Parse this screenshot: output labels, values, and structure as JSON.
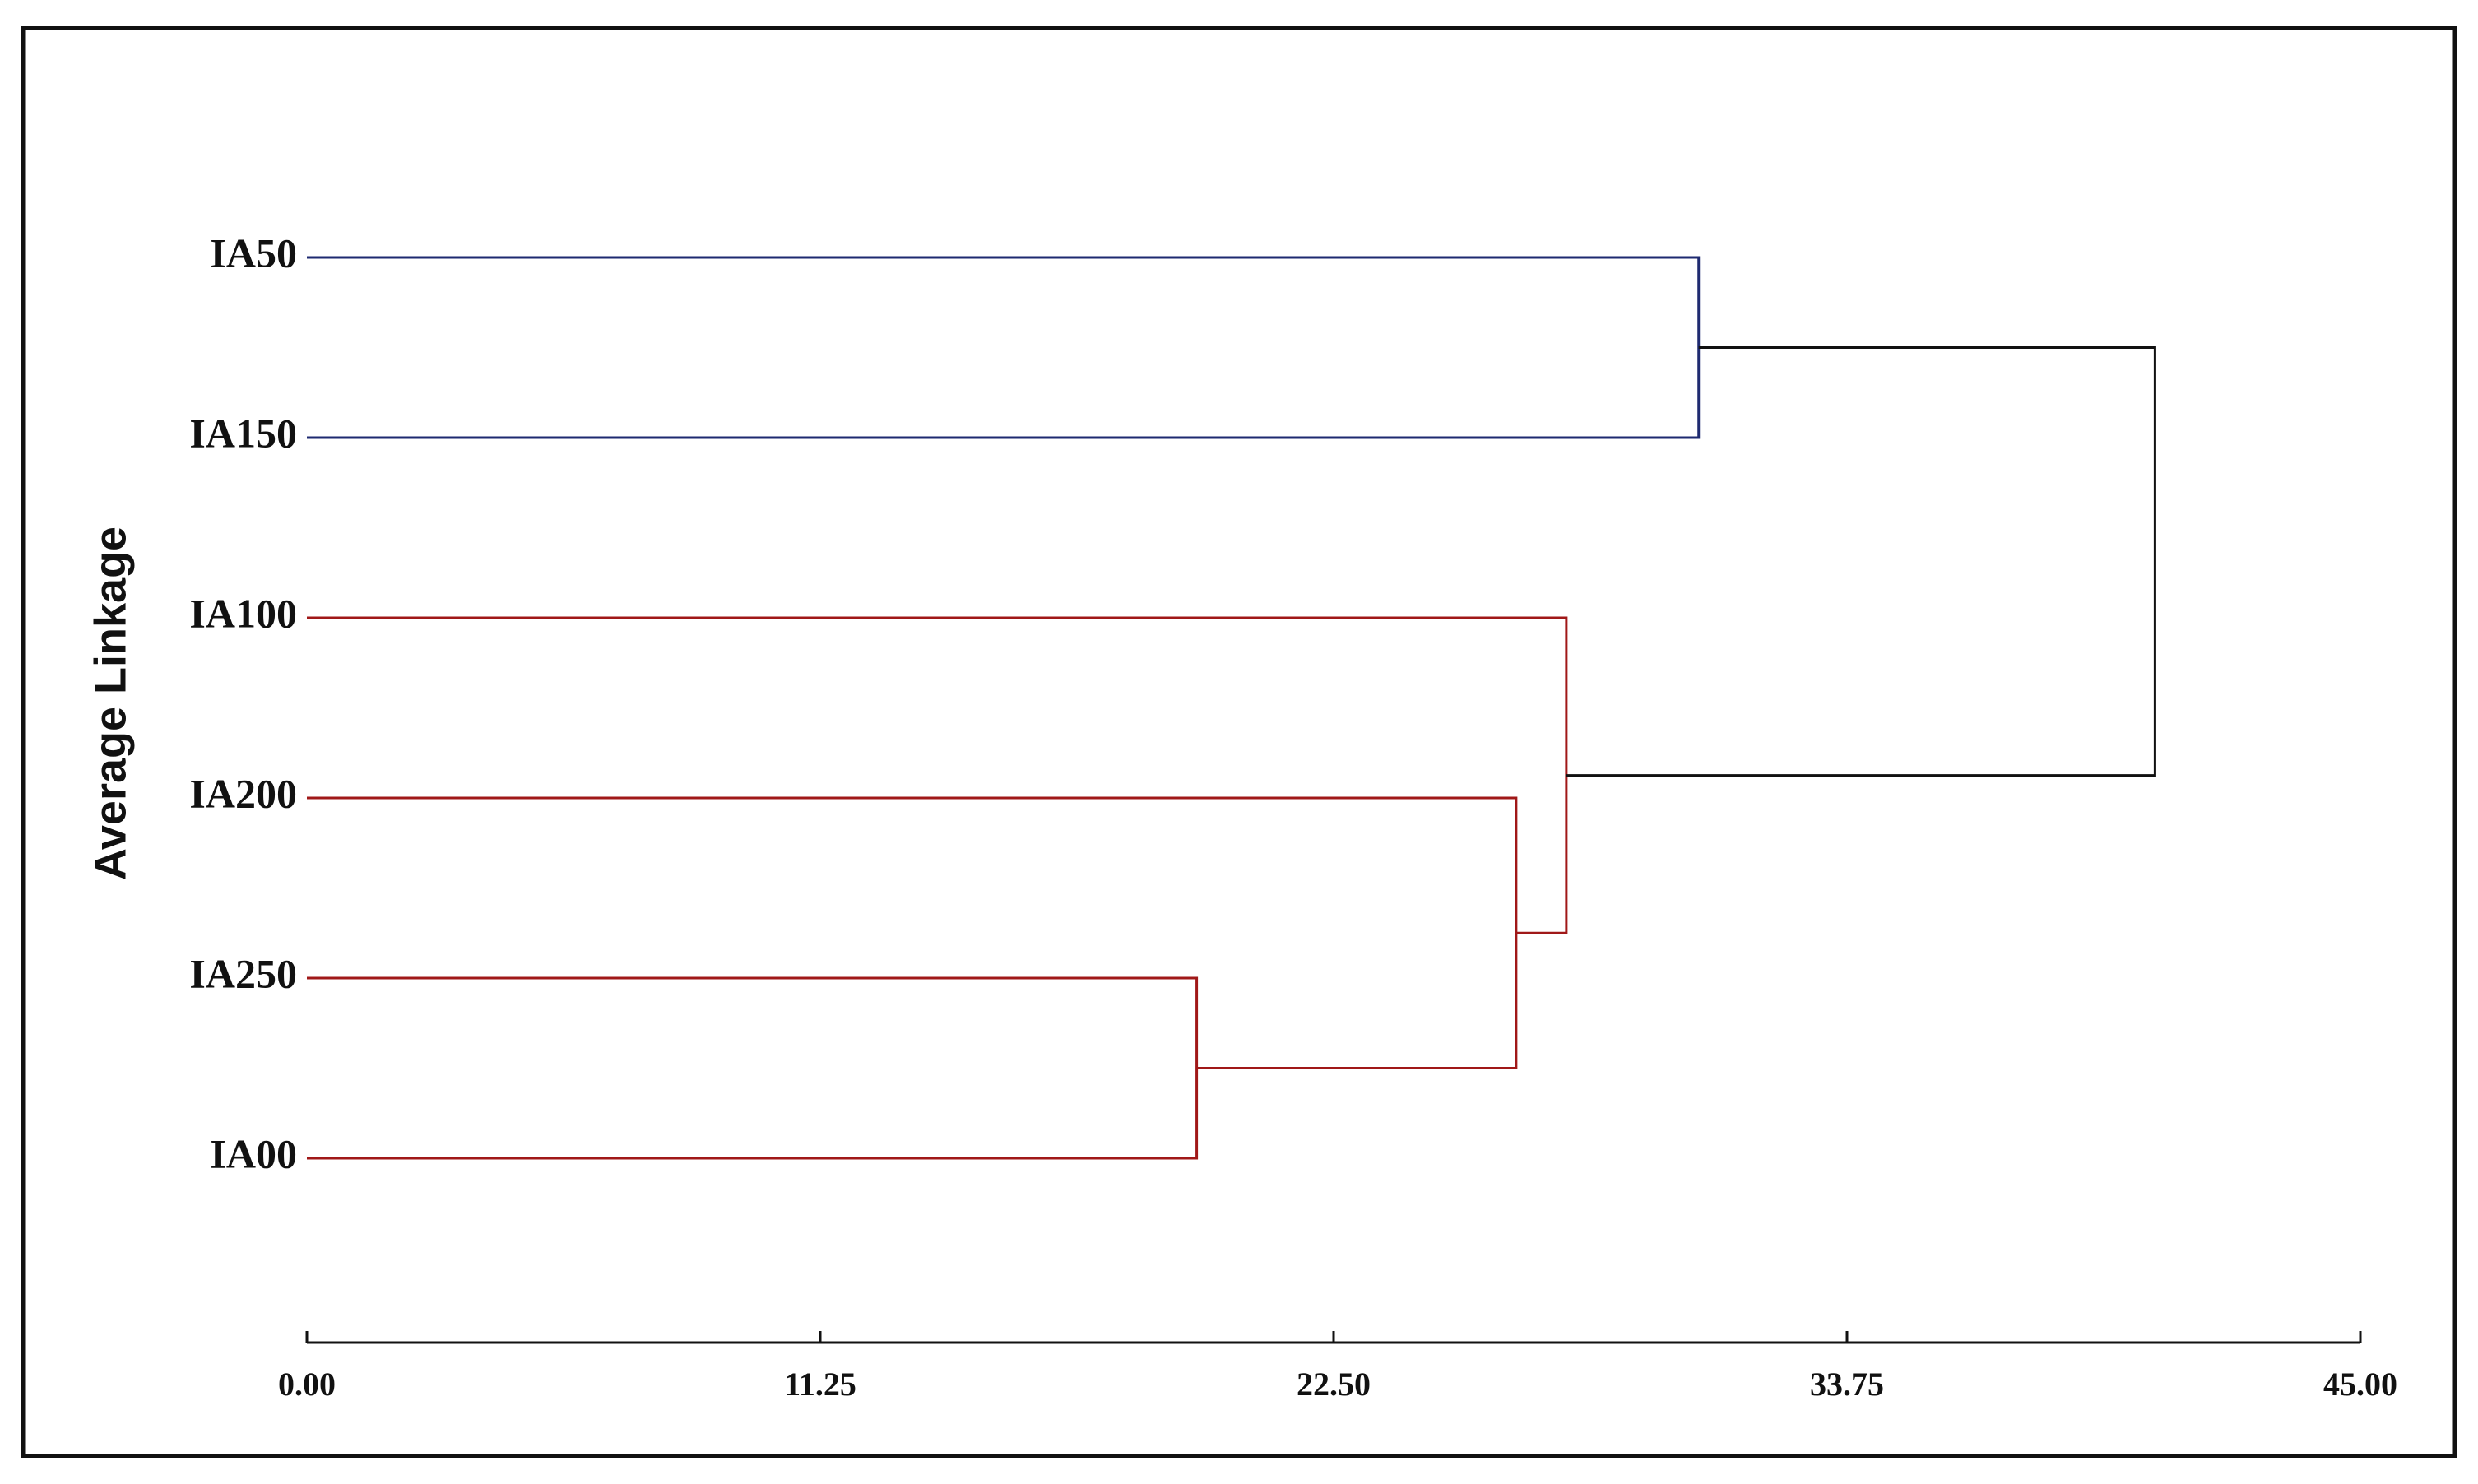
{
  "chart_data": {
    "type": "dendrogram",
    "y_label": "Average Linkage",
    "leaves": [
      "IA50",
      "IA150",
      "IA100",
      "IA200",
      "IA250",
      "IA00"
    ],
    "merges": [
      {
        "children": [
          4,
          5
        ],
        "height": 19.5,
        "color": "#a01818"
      },
      {
        "children": [
          3,
          6
        ],
        "height": 26.5,
        "color": "#a01818"
      },
      {
        "children": [
          2,
          7
        ],
        "height": 27.6,
        "color": "#a01818"
      },
      {
        "children": [
          0,
          1
        ],
        "height": 30.5,
        "color": "#1e2a70"
      },
      {
        "children": [
          9,
          8
        ],
        "height": 40.5,
        "color": "#111111"
      }
    ],
    "xlim": [
      0,
      45
    ],
    "xticks": [
      {
        "value": 0,
        "label": "0.00"
      },
      {
        "value": 11.25,
        "label": "11.25"
      },
      {
        "value": 22.5,
        "label": "22.50"
      },
      {
        "value": 33.75,
        "label": "33.75"
      },
      {
        "value": 45,
        "label": "45.00"
      }
    ]
  }
}
